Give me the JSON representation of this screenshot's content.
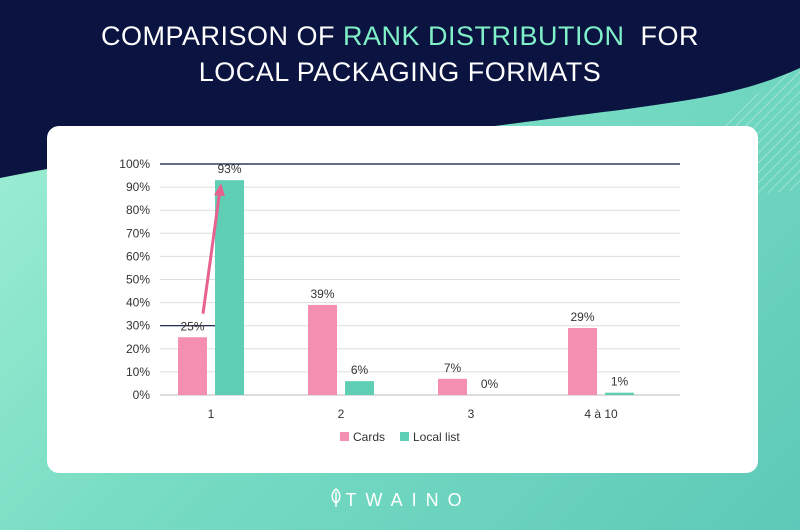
{
  "title": {
    "line1_pre": "COMPARISON OF ",
    "line1_accent": "RANK DISTRIBUTION",
    "line1_post": "  FOR",
    "line2": "LOCAL PACKAGING FORMATS"
  },
  "brand": {
    "name": "TWAINO",
    "icon": "leaf-icon"
  },
  "colors": {
    "navy": "#0b1340",
    "cards": "#f48fb1",
    "local_list": "#5ecfb4",
    "accent_text": "#7ff0c8",
    "arrow": "#e8628f"
  },
  "chart_data": {
    "type": "bar",
    "categories": [
      "1",
      "2",
      "3",
      "4 à 10"
    ],
    "series": [
      {
        "name": "Cards",
        "values": [
          25,
          39,
          7,
          29
        ]
      },
      {
        "name": "Local list",
        "values": [
          93,
          6,
          0,
          1
        ]
      }
    ],
    "data_labels": [
      [
        "25%",
        "39%",
        "7%",
        "29%"
      ],
      [
        "93%",
        "6%",
        "0%",
        "1%"
      ]
    ],
    "y_ticks": [
      "0%",
      "10%",
      "20%",
      "30%",
      "40%",
      "50%",
      "60%",
      "70%",
      "80%",
      "90%",
      "100%"
    ],
    "ylim": [
      0,
      100
    ],
    "reference_lines": [
      30,
      100
    ],
    "annotation_arrow": {
      "from": 30,
      "to": 93,
      "category": "1"
    },
    "grid": true,
    "legend": "bottom"
  }
}
